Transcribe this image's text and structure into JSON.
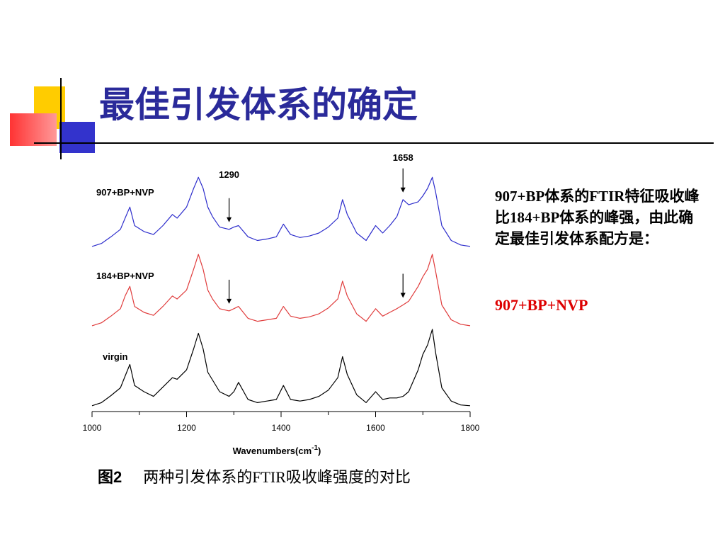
{
  "slide": {
    "title": "最佳引发体系的确定",
    "conclusion": "907+BP体系的FTIR特征吸收峰比184+BP体系的峰强，由此确定最佳引发体系配方是：",
    "recommended": "907+BP+NVP",
    "caption_label": "图2",
    "caption_text": "两种引发体系的FTIR吸收峰强度的对比"
  },
  "colors": {
    "title": "#2a2a9a",
    "series_907": "#2d2dcc",
    "series_184": "#e03c3c",
    "series_virgin": "#000000",
    "highlight": "#dd0000",
    "deco_yellow": "#ffcc00",
    "deco_blue": "#3333cc",
    "deco_red": "#ff3333"
  },
  "chart_data": {
    "type": "line",
    "xlabel": "Wavenumbers(cm",
    "xlabel_sup": "-1",
    "xlim": [
      1000,
      1800
    ],
    "x_ticks": [
      "1000",
      "1200",
      "1400",
      "1600",
      "1800"
    ],
    "annotations": [
      {
        "label": "1290",
        "x": 1290
      },
      {
        "label": "1658",
        "x": 1658
      }
    ],
    "series": [
      {
        "name": "907+BP+NVP",
        "color": "#2d2dcc",
        "x": [
          1000,
          1020,
          1040,
          1060,
          1070,
          1080,
          1090,
          1110,
          1130,
          1150,
          1170,
          1180,
          1200,
          1215,
          1225,
          1235,
          1245,
          1255,
          1270,
          1290,
          1300,
          1310,
          1330,
          1350,
          1370,
          1390,
          1405,
          1420,
          1440,
          1460,
          1480,
          1500,
          1520,
          1530,
          1540,
          1560,
          1580,
          1600,
          1615,
          1630,
          1645,
          1658,
          1670,
          1690,
          1700,
          1710,
          1720,
          1727,
          1740,
          1760,
          1780,
          1800
        ],
        "y": [
          0.02,
          0.06,
          0.15,
          0.25,
          0.4,
          0.55,
          0.3,
          0.22,
          0.18,
          0.3,
          0.45,
          0.4,
          0.55,
          0.8,
          0.95,
          0.8,
          0.55,
          0.42,
          0.28,
          0.25,
          0.28,
          0.3,
          0.15,
          0.1,
          0.12,
          0.15,
          0.32,
          0.18,
          0.14,
          0.16,
          0.2,
          0.28,
          0.4,
          0.65,
          0.45,
          0.2,
          0.1,
          0.3,
          0.2,
          0.3,
          0.42,
          0.65,
          0.58,
          0.62,
          0.7,
          0.8,
          0.95,
          0.75,
          0.3,
          0.1,
          0.04,
          0.02
        ]
      },
      {
        "name": "184+BP+NVP",
        "color": "#e03c3c",
        "x": [
          1000,
          1020,
          1040,
          1060,
          1070,
          1080,
          1090,
          1110,
          1130,
          1150,
          1170,
          1180,
          1200,
          1215,
          1225,
          1235,
          1245,
          1255,
          1270,
          1290,
          1300,
          1310,
          1330,
          1350,
          1370,
          1390,
          1405,
          1420,
          1440,
          1460,
          1480,
          1500,
          1520,
          1530,
          1540,
          1560,
          1580,
          1600,
          1615,
          1630,
          1645,
          1658,
          1670,
          1690,
          1700,
          1710,
          1720,
          1727,
          1740,
          1760,
          1780,
          1800
        ],
        "y": [
          0.02,
          0.06,
          0.15,
          0.25,
          0.42,
          0.55,
          0.28,
          0.2,
          0.16,
          0.28,
          0.42,
          0.38,
          0.5,
          0.78,
          0.98,
          0.78,
          0.5,
          0.38,
          0.25,
          0.22,
          0.25,
          0.28,
          0.12,
          0.08,
          0.1,
          0.12,
          0.28,
          0.15,
          0.12,
          0.14,
          0.18,
          0.26,
          0.38,
          0.62,
          0.42,
          0.18,
          0.08,
          0.25,
          0.15,
          0.2,
          0.25,
          0.3,
          0.35,
          0.55,
          0.68,
          0.78,
          0.98,
          0.75,
          0.3,
          0.1,
          0.04,
          0.02
        ]
      },
      {
        "name": "virgin",
        "color": "#000000",
        "x": [
          1000,
          1020,
          1040,
          1060,
          1070,
          1080,
          1090,
          1110,
          1130,
          1150,
          1170,
          1180,
          1200,
          1215,
          1225,
          1235,
          1245,
          1255,
          1270,
          1290,
          1300,
          1310,
          1330,
          1350,
          1370,
          1390,
          1405,
          1420,
          1440,
          1460,
          1480,
          1500,
          1520,
          1530,
          1540,
          1560,
          1580,
          1600,
          1615,
          1630,
          1645,
          1658,
          1670,
          1690,
          1700,
          1710,
          1720,
          1727,
          1740,
          1760,
          1780,
          1800
        ],
        "y": [
          0.02,
          0.06,
          0.15,
          0.25,
          0.4,
          0.55,
          0.28,
          0.2,
          0.14,
          0.26,
          0.38,
          0.36,
          0.48,
          0.75,
          0.95,
          0.75,
          0.45,
          0.35,
          0.2,
          0.14,
          0.2,
          0.32,
          0.1,
          0.06,
          0.08,
          0.1,
          0.28,
          0.1,
          0.08,
          0.1,
          0.14,
          0.22,
          0.38,
          0.65,
          0.42,
          0.16,
          0.06,
          0.2,
          0.1,
          0.12,
          0.12,
          0.14,
          0.2,
          0.48,
          0.68,
          0.8,
          1.0,
          0.7,
          0.25,
          0.08,
          0.03,
          0.02
        ]
      }
    ]
  }
}
